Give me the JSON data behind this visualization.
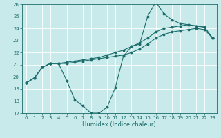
{
  "xlabel": "Humidex (Indice chaleur)",
  "bg_color": "#c8eaea",
  "grid_color": "#ffffff",
  "line_color": "#1a6b6b",
  "xlim": [
    -0.5,
    23.5
  ],
  "ylim": [
    17,
    26
  ],
  "yticks": [
    17,
    18,
    19,
    20,
    21,
    22,
    23,
    24,
    25,
    26
  ],
  "xticks": [
    0,
    1,
    2,
    3,
    4,
    5,
    6,
    7,
    8,
    9,
    10,
    11,
    12,
    13,
    14,
    15,
    16,
    17,
    18,
    19,
    20,
    21,
    22,
    23
  ],
  "line1_x": [
    0,
    1,
    2,
    3,
    4,
    5,
    6,
    7,
    8,
    9,
    10,
    11,
    12,
    13,
    14,
    15,
    16,
    17,
    18,
    19,
    20,
    21,
    22,
    23
  ],
  "line1_y": [
    19.5,
    19.9,
    20.8,
    21.1,
    21.1,
    19.7,
    18.1,
    17.6,
    17.0,
    17.0,
    17.5,
    19.1,
    21.7,
    22.5,
    22.7,
    25.0,
    26.2,
    25.2,
    24.7,
    24.4,
    24.3,
    24.2,
    24.1,
    23.2
  ],
  "line2_x": [
    0,
    1,
    2,
    3,
    4,
    5,
    6,
    7,
    8,
    9,
    10,
    11,
    12,
    13,
    14,
    15,
    16,
    17,
    18,
    19,
    20,
    21,
    22,
    23
  ],
  "line2_y": [
    19.5,
    19.9,
    20.8,
    21.1,
    21.1,
    21.1,
    21.2,
    21.3,
    21.4,
    21.5,
    21.6,
    21.7,
    21.8,
    22.0,
    22.3,
    22.7,
    23.2,
    23.5,
    23.7,
    23.8,
    23.9,
    24.0,
    23.9,
    23.2
  ],
  "line3_x": [
    0,
    1,
    2,
    3,
    4,
    5,
    6,
    7,
    8,
    9,
    10,
    11,
    12,
    13,
    14,
    15,
    16,
    17,
    18,
    19,
    20,
    21,
    22,
    23
  ],
  "line3_y": [
    19.5,
    19.9,
    20.8,
    21.1,
    21.1,
    21.2,
    21.3,
    21.4,
    21.5,
    21.6,
    21.8,
    22.0,
    22.2,
    22.5,
    22.8,
    23.2,
    23.7,
    24.0,
    24.1,
    24.2,
    24.3,
    24.2,
    24.1,
    23.2
  ],
  "tick_fontsize": 5,
  "xlabel_fontsize": 6,
  "marker_size": 1.8,
  "line_width": 0.8
}
